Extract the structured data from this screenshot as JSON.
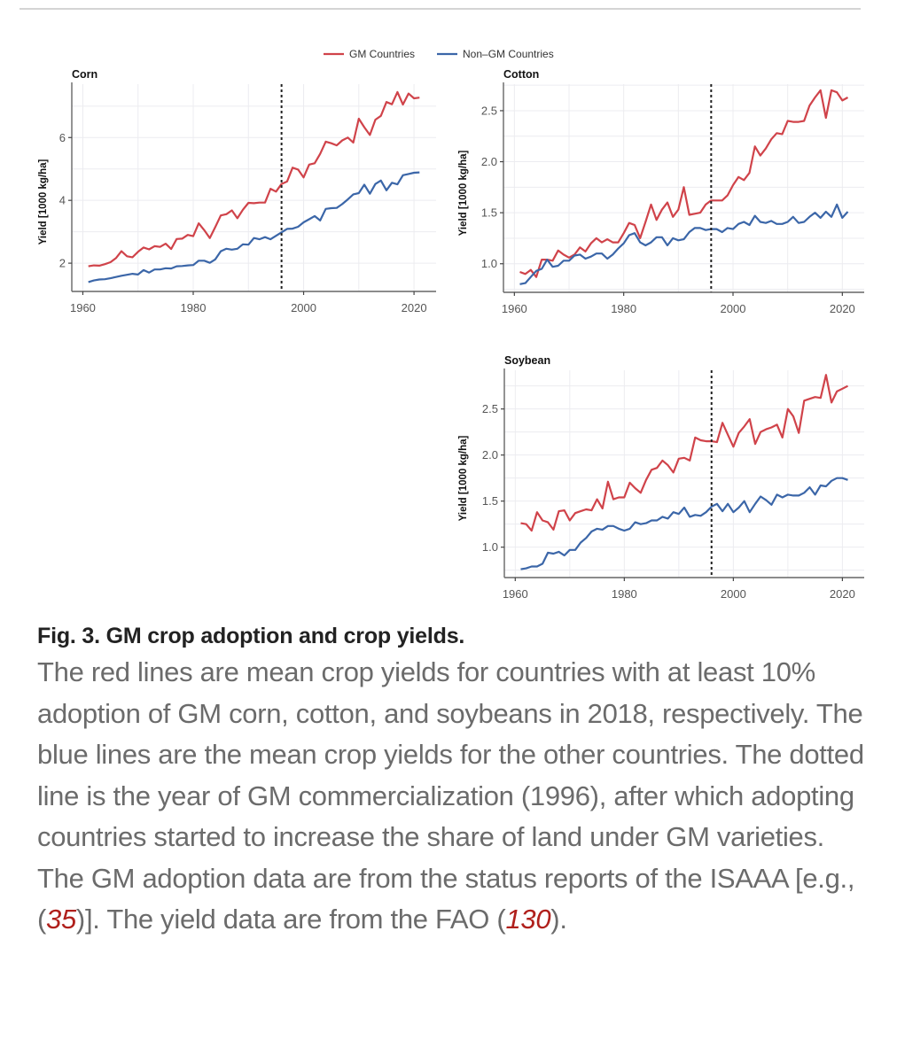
{
  "chart_data": {
    "type": "line",
    "legend": {
      "position": "top-center",
      "entries": [
        {
          "name": "GM Countries",
          "color": "#d0434a"
        },
        {
          "name": "Non–GM Countries",
          "color": "#3b66a8"
        }
      ]
    },
    "reference_line": {
      "x": 1996,
      "style": "dotted",
      "label": "GM commercialization"
    },
    "x": [
      1961,
      1962,
      1963,
      1964,
      1965,
      1966,
      1967,
      1968,
      1969,
      1970,
      1971,
      1972,
      1973,
      1974,
      1975,
      1976,
      1977,
      1978,
      1979,
      1980,
      1981,
      1982,
      1983,
      1984,
      1985,
      1986,
      1987,
      1988,
      1989,
      1990,
      1991,
      1992,
      1993,
      1994,
      1995,
      1996,
      1997,
      1998,
      1999,
      2000,
      2001,
      2002,
      2003,
      2004,
      2005,
      2006,
      2007,
      2008,
      2009,
      2010,
      2011,
      2012,
      2013,
      2014,
      2015,
      2016,
      2017,
      2018,
      2019,
      2020,
      2021
    ],
    "panels": [
      {
        "id": "corn",
        "title": "Corn",
        "ylabel": "Yield [1000 kg/ha]",
        "xlabel": "",
        "xlim": [
          1958,
          2024
        ],
        "ylim": [
          1.1,
          7.7
        ],
        "xticks": [
          1960,
          1980,
          2000,
          2020
        ],
        "yticks": [
          2,
          4,
          6
        ],
        "ytick_labels": [
          "2",
          "4",
          "6"
        ],
        "grid": true,
        "series": [
          {
            "name": "GM Countries",
            "color": "#d0434a",
            "values": [
              1.9,
              1.93,
              1.92,
              1.97,
              2.03,
              2.16,
              2.38,
              2.22,
              2.19,
              2.36,
              2.5,
              2.44,
              2.54,
              2.52,
              2.62,
              2.45,
              2.77,
              2.78,
              2.9,
              2.86,
              3.27,
              3.05,
              2.8,
              3.15,
              3.52,
              3.56,
              3.68,
              3.43,
              3.7,
              3.92,
              3.91,
              3.93,
              3.93,
              4.37,
              4.28,
              4.52,
              4.6,
              5.04,
              4.98,
              4.73,
              5.14,
              5.18,
              5.48,
              5.87,
              5.82,
              5.75,
              5.91,
              6.0,
              5.84,
              6.6,
              6.33,
              6.08,
              6.57,
              6.69,
              7.13,
              7.06,
              7.45,
              7.05,
              7.4,
              7.25,
              7.27
            ]
          },
          {
            "name": "Non–GM Countries",
            "color": "#3b66a8",
            "values": [
              1.4,
              1.45,
              1.48,
              1.49,
              1.52,
              1.56,
              1.6,
              1.63,
              1.66,
              1.64,
              1.78,
              1.7,
              1.8,
              1.8,
              1.84,
              1.83,
              1.9,
              1.91,
              1.93,
              1.94,
              2.08,
              2.08,
              2.01,
              2.12,
              2.38,
              2.46,
              2.43,
              2.46,
              2.6,
              2.59,
              2.8,
              2.76,
              2.83,
              2.76,
              2.87,
              2.98,
              3.09,
              3.1,
              3.16,
              3.3,
              3.4,
              3.5,
              3.36,
              3.73,
              3.75,
              3.76,
              3.88,
              4.03,
              4.19,
              4.23,
              4.5,
              4.21,
              4.52,
              4.63,
              4.32,
              4.56,
              4.51,
              4.8,
              4.84,
              4.88,
              4.89
            ]
          }
        ]
      },
      {
        "id": "cotton",
        "title": "Cotton",
        "ylabel": "Yield [1000 kg/ha]",
        "xlabel": "",
        "xlim": [
          1958,
          2024
        ],
        "ylim": [
          0.72,
          2.76
        ],
        "xticks": [
          1960,
          1980,
          2000,
          2020
        ],
        "yticks": [
          1.0,
          1.5,
          2.0,
          2.5
        ],
        "ytick_labels": [
          "1.0",
          "1.5",
          "2.0",
          "2.5"
        ],
        "grid": true,
        "series": [
          {
            "name": "GM Countries",
            "color": "#d0434a",
            "values": [
              0.92,
              0.9,
              0.94,
              0.87,
              1.04,
              1.04,
              1.03,
              1.13,
              1.09,
              1.06,
              1.09,
              1.16,
              1.12,
              1.2,
              1.25,
              1.21,
              1.24,
              1.21,
              1.21,
              1.3,
              1.4,
              1.38,
              1.25,
              1.41,
              1.58,
              1.43,
              1.53,
              1.6,
              1.46,
              1.53,
              1.75,
              1.48,
              1.49,
              1.5,
              1.58,
              1.62,
              1.62,
              1.62,
              1.67,
              1.77,
              1.85,
              1.82,
              1.89,
              2.15,
              2.06,
              2.13,
              2.22,
              2.28,
              2.27,
              2.4,
              2.39,
              2.39,
              2.4,
              2.55,
              2.63,
              2.7,
              2.43,
              2.7,
              2.68,
              2.6,
              2.63
            ]
          },
          {
            "name": "Non–GM Countries",
            "color": "#3b66a8",
            "values": [
              0.8,
              0.81,
              0.87,
              0.93,
              0.95,
              1.04,
              0.97,
              0.98,
              1.03,
              1.03,
              1.08,
              1.09,
              1.05,
              1.07,
              1.1,
              1.1,
              1.05,
              1.09,
              1.15,
              1.2,
              1.28,
              1.3,
              1.21,
              1.18,
              1.21,
              1.26,
              1.26,
              1.18,
              1.25,
              1.23,
              1.24,
              1.31,
              1.35,
              1.35,
              1.33,
              1.34,
              1.34,
              1.31,
              1.35,
              1.34,
              1.39,
              1.41,
              1.38,
              1.47,
              1.41,
              1.4,
              1.42,
              1.39,
              1.39,
              1.41,
              1.46,
              1.4,
              1.41,
              1.46,
              1.5,
              1.45,
              1.51,
              1.46,
              1.58,
              1.45,
              1.51
            ]
          }
        ]
      },
      {
        "id": "soybean",
        "title": "Soybean",
        "ylabel": "Yield [1000 kg/ha]",
        "xlabel": "",
        "xlim": [
          1958,
          2024
        ],
        "ylim": [
          0.67,
          2.92
        ],
        "xticks": [
          1960,
          1980,
          2000,
          2020
        ],
        "yticks": [
          1.0,
          1.5,
          2.0,
          2.5
        ],
        "ytick_labels": [
          "1.0",
          "1.5",
          "2.0",
          "2.5"
        ],
        "grid": true,
        "series": [
          {
            "name": "GM Countries",
            "color": "#d0434a",
            "values": [
              1.26,
              1.25,
              1.18,
              1.38,
              1.29,
              1.27,
              1.19,
              1.39,
              1.4,
              1.29,
              1.37,
              1.39,
              1.41,
              1.4,
              1.52,
              1.42,
              1.71,
              1.52,
              1.54,
              1.54,
              1.7,
              1.64,
              1.59,
              1.73,
              1.84,
              1.86,
              1.94,
              1.89,
              1.81,
              1.96,
              1.97,
              1.94,
              2.19,
              2.16,
              2.15,
              2.15,
              2.14,
              2.35,
              2.22,
              2.09,
              2.24,
              2.31,
              2.39,
              2.12,
              2.25,
              2.28,
              2.3,
              2.33,
              2.19,
              2.5,
              2.42,
              2.24,
              2.59,
              2.61,
              2.63,
              2.62,
              2.87,
              2.57,
              2.69,
              2.72,
              2.75
            ]
          },
          {
            "name": "Non–GM Countries",
            "color": "#3b66a8",
            "values": [
              0.76,
              0.77,
              0.79,
              0.79,
              0.82,
              0.94,
              0.93,
              0.95,
              0.91,
              0.97,
              0.97,
              1.05,
              1.1,
              1.17,
              1.2,
              1.19,
              1.23,
              1.23,
              1.2,
              1.18,
              1.2,
              1.27,
              1.25,
              1.26,
              1.29,
              1.29,
              1.33,
              1.31,
              1.38,
              1.36,
              1.43,
              1.33,
              1.35,
              1.34,
              1.38,
              1.44,
              1.47,
              1.39,
              1.47,
              1.38,
              1.43,
              1.5,
              1.38,
              1.47,
              1.55,
              1.51,
              1.46,
              1.57,
              1.54,
              1.57,
              1.56,
              1.56,
              1.59,
              1.65,
              1.57,
              1.67,
              1.66,
              1.72,
              1.75,
              1.75,
              1.73
            ]
          }
        ]
      }
    ]
  },
  "caption": {
    "fig_label": "Fig. 3.",
    "title": "GM crop adoption and crop yields.",
    "body_part1": "The red lines are mean crop yields for countries with at least 10% adoption of GM corn, cotton, and soybeans in 2018, respectively. The blue lines are the mean crop yields for the other countries. The dotted line is the year of GM commercialization (1996), after which adopting countries started to increase the share of land under GM varieties. The GM adoption data are from the status reports of the ISAAA [e.g., (",
    "ref_1": "35",
    "body_part2": ")]. The yield data are from the FAO (",
    "ref_2": "130",
    "body_part3": ")."
  },
  "colors": {
    "gm": "#d0434a",
    "non_gm": "#3b66a8",
    "reference_link": "#b0201c"
  }
}
